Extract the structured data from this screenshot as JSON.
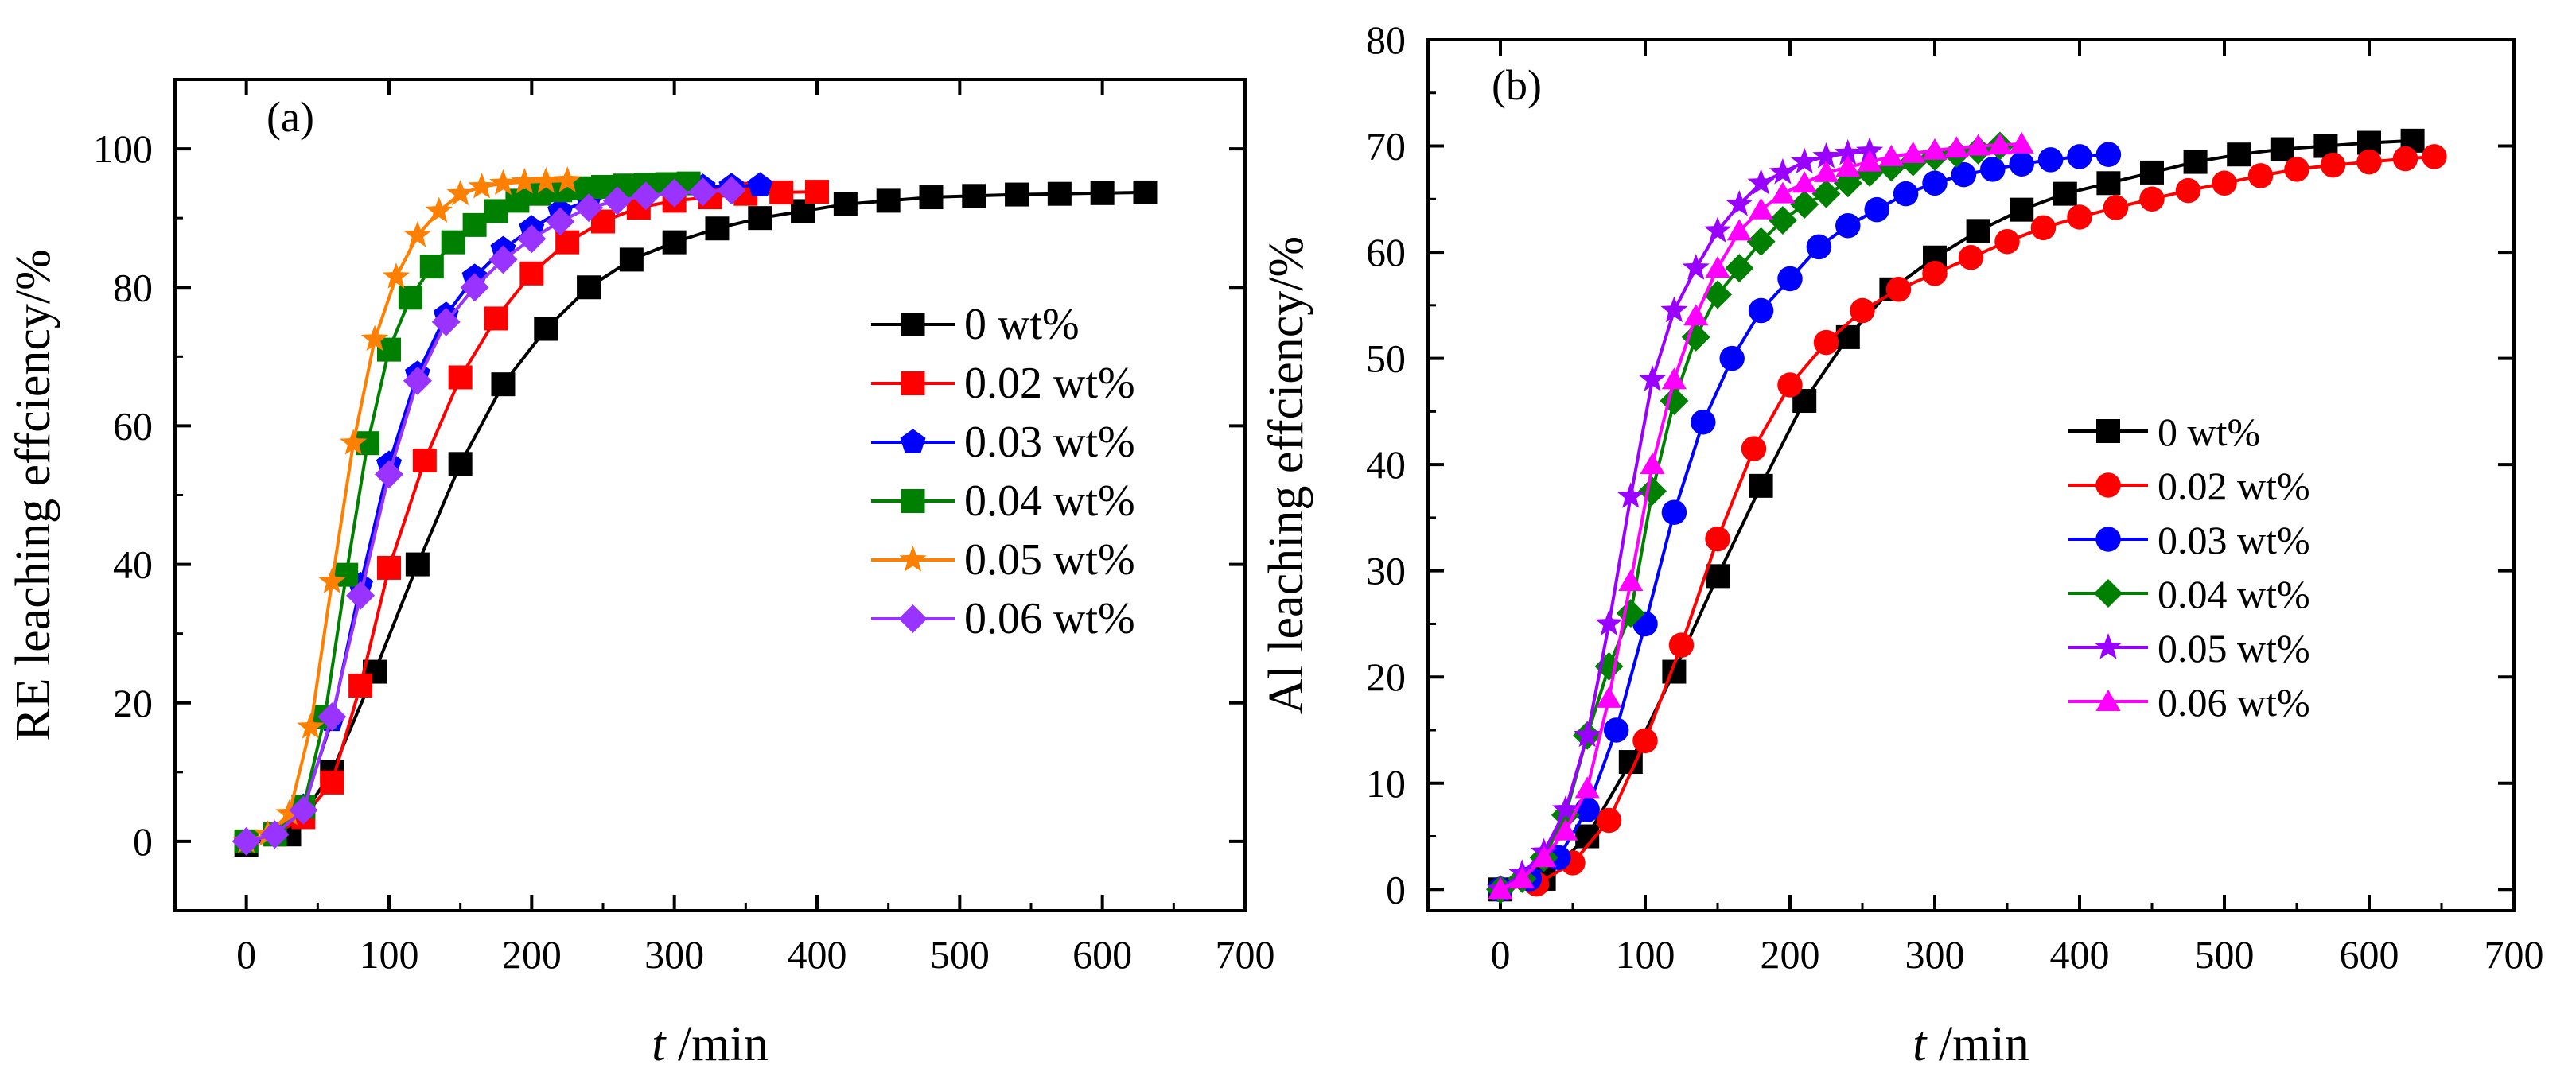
{
  "chart_data": [
    {
      "type": "line",
      "panel_label": "(a)",
      "xlabel_italic": "t",
      "xlabel_unit": " /min",
      "ylabel": "RE leaching effciency/%",
      "xlim": [
        -50,
        700
      ],
      "ylim": [
        -10,
        110
      ],
      "xticks": [
        0,
        100,
        200,
        300,
        400,
        500,
        600,
        700
      ],
      "yticks": [
        0,
        20,
        40,
        60,
        80,
        100
      ],
      "legend_position": "center-right",
      "series": [
        {
          "name": "0 wt%",
          "color": "#000000",
          "marker": "square",
          "x": [
            0,
            30,
            60,
            90,
            120,
            150,
            180,
            210,
            240,
            270,
            300,
            330,
            360,
            390,
            420,
            450,
            480,
            510,
            540,
            570,
            600,
            630
          ],
          "y": [
            -0.5,
            1,
            10,
            24.5,
            40,
            54.5,
            66,
            74,
            80,
            84,
            86.5,
            88.5,
            90,
            91,
            92,
            92.5,
            93,
            93.2,
            93.4,
            93.5,
            93.6,
            93.7
          ]
        },
        {
          "name": "0.02 wt%",
          "color": "#ff0000",
          "marker": "square",
          "x": [
            0,
            20,
            40,
            60,
            80,
            100,
            125,
            150,
            175,
            200,
            225,
            250,
            275,
            300,
            325,
            350,
            375,
            400
          ],
          "y": [
            0,
            1,
            3.5,
            8.5,
            22.5,
            39.5,
            55,
            67,
            75.5,
            82,
            86.5,
            89.5,
            91.5,
            92.5,
            93,
            93.5,
            93.7,
            93.8
          ]
        },
        {
          "name": "0.03 wt%",
          "color": "#0000ff",
          "marker": "pentagon",
          "x": [
            0,
            20,
            40,
            60,
            80,
            100,
            120,
            140,
            160,
            180,
            200,
            220,
            240,
            260,
            280,
            300,
            320,
            340,
            360
          ],
          "y": [
            0,
            1,
            5,
            17.5,
            37,
            54.5,
            67.5,
            76,
            81.5,
            85.5,
            88.5,
            91,
            92.5,
            93.5,
            94,
            94.3,
            94.5,
            94.6,
            94.7
          ]
        },
        {
          "name": "0.04 wt%",
          "color": "#008000",
          "marker": "square",
          "x": [
            0,
            20,
            40,
            55,
            70,
            85,
            100,
            115,
            130,
            145,
            160,
            175,
            190,
            205,
            220,
            235,
            250,
            265,
            280,
            295,
            310
          ],
          "y": [
            0,
            1,
            5,
            18,
            38.5,
            57.5,
            71,
            78.5,
            83,
            86.5,
            89,
            91,
            92.5,
            93.5,
            94,
            94.3,
            94.5,
            94.7,
            94.8,
            94.9,
            95
          ]
        },
        {
          "name": "0.05 wt%",
          "color": "#ff8000",
          "marker": "star",
          "x": [
            0,
            15,
            30,
            45,
            60,
            75,
            90,
            105,
            120,
            135,
            150,
            165,
            180,
            195,
            210,
            225
          ],
          "y": [
            0,
            1,
            4,
            16.5,
            37.5,
            57.5,
            72.5,
            81.5,
            87.5,
            91,
            93.5,
            94.5,
            95,
            95.2,
            95.3,
            95.4
          ]
        },
        {
          "name": "0.06 wt%",
          "color": "#9933ff",
          "marker": "diamond",
          "x": [
            0,
            20,
            40,
            60,
            80,
            100,
            120,
            140,
            160,
            180,
            200,
            220,
            240,
            260,
            280,
            300,
            320,
            340
          ],
          "y": [
            0,
            1,
            4.5,
            18,
            35.5,
            53,
            66.5,
            75,
            80,
            84,
            87,
            89.5,
            91.5,
            92.5,
            93.2,
            93.6,
            93.8,
            94
          ]
        }
      ]
    },
    {
      "type": "line",
      "panel_label": "(b)",
      "xlabel_italic": "t",
      "xlabel_unit": " /min",
      "ylabel": "Al leaching effciency/%",
      "xlim": [
        -50,
        700
      ],
      "ylim": [
        -2,
        80
      ],
      "xticks": [
        0,
        100,
        200,
        300,
        400,
        500,
        600,
        700
      ],
      "yticks": [
        0,
        10,
        20,
        30,
        40,
        50,
        60,
        70,
        80
      ],
      "legend_position": "lower-right",
      "series": [
        {
          "name": "0 wt%",
          "color": "#000000",
          "marker": "square",
          "x": [
            0,
            30,
            60,
            90,
            120,
            150,
            180,
            210,
            240,
            270,
            300,
            330,
            360,
            390,
            420,
            450,
            480,
            510,
            540,
            570,
            600,
            630
          ],
          "y": [
            0,
            1,
            5,
            12,
            20.5,
            29.5,
            38,
            46,
            52,
            56.5,
            59.5,
            62,
            64,
            65.5,
            66.5,
            67.5,
            68.5,
            69.2,
            69.7,
            70,
            70.3,
            70.5
          ]
        },
        {
          "name": "0.02 wt%",
          "color": "#ff0000",
          "marker": "circle",
          "x": [
            0,
            25,
            50,
            75,
            100,
            125,
            150,
            175,
            200,
            225,
            250,
            275,
            300,
            325,
            350,
            375,
            400,
            425,
            450,
            475,
            500,
            525,
            550,
            575,
            600,
            625,
            645
          ],
          "y": [
            0,
            0.5,
            2.5,
            6.5,
            14,
            23,
            33,
            41.5,
            47.5,
            51.5,
            54.5,
            56.5,
            58,
            59.5,
            61,
            62.3,
            63.3,
            64.2,
            65,
            65.8,
            66.5,
            67.2,
            67.8,
            68.2,
            68.5,
            68.8,
            69
          ]
        },
        {
          "name": "0.03 wt%",
          "color": "#0000ff",
          "marker": "circle",
          "x": [
            0,
            20,
            40,
            60,
            80,
            100,
            120,
            140,
            160,
            180,
            200,
            220,
            240,
            260,
            280,
            300,
            320,
            340,
            360,
            380,
            400,
            420
          ],
          "y": [
            0,
            1,
            3,
            7.5,
            15,
            25,
            35.5,
            44,
            50,
            54.5,
            57.5,
            60.5,
            62.5,
            64,
            65.5,
            66.5,
            67.3,
            67.8,
            68.3,
            68.7,
            69,
            69.2
          ]
        },
        {
          "name": "0.04 wt%",
          "color": "#008000",
          "marker": "diamond",
          "x": [
            0,
            15,
            30,
            45,
            60,
            75,
            90,
            105,
            120,
            135,
            150,
            165,
            180,
            195,
            210,
            225,
            240,
            255,
            270,
            285,
            300,
            315,
            330,
            345
          ],
          "y": [
            0,
            1,
            3,
            7,
            14.5,
            21,
            26,
            37.5,
            46,
            52,
            56,
            58.5,
            61,
            63,
            64.5,
            65.5,
            66.5,
            67.5,
            68,
            68.5,
            69,
            69.3,
            69.6,
            70
          ]
        },
        {
          "name": "0.05 wt%",
          "color": "#9900ff",
          "marker": "star",
          "x": [
            0,
            15,
            30,
            45,
            60,
            75,
            90,
            105,
            120,
            135,
            150,
            165,
            180,
            195,
            210,
            225,
            240,
            255
          ],
          "y": [
            0,
            1.5,
            3.5,
            7.5,
            14.5,
            25,
            37,
            48,
            54.5,
            58.5,
            62,
            64.5,
            66.5,
            67.5,
            68.5,
            69,
            69.3,
            69.5
          ]
        },
        {
          "name": "0.06 wt%",
          "color": "#ff00ff",
          "marker": "triangle",
          "x": [
            0,
            15,
            30,
            45,
            60,
            75,
            90,
            105,
            120,
            135,
            150,
            165,
            180,
            195,
            210,
            225,
            240,
            255,
            270,
            285,
            300,
            315,
            330,
            345,
            360
          ],
          "y": [
            0,
            1,
            3,
            5.5,
            9.5,
            18,
            29,
            40,
            48,
            54,
            58.5,
            62,
            64,
            65.5,
            66.5,
            67.5,
            68,
            68.5,
            69,
            69.3,
            69.6,
            69.8,
            70,
            70.1,
            70.2
          ]
        }
      ]
    }
  ]
}
